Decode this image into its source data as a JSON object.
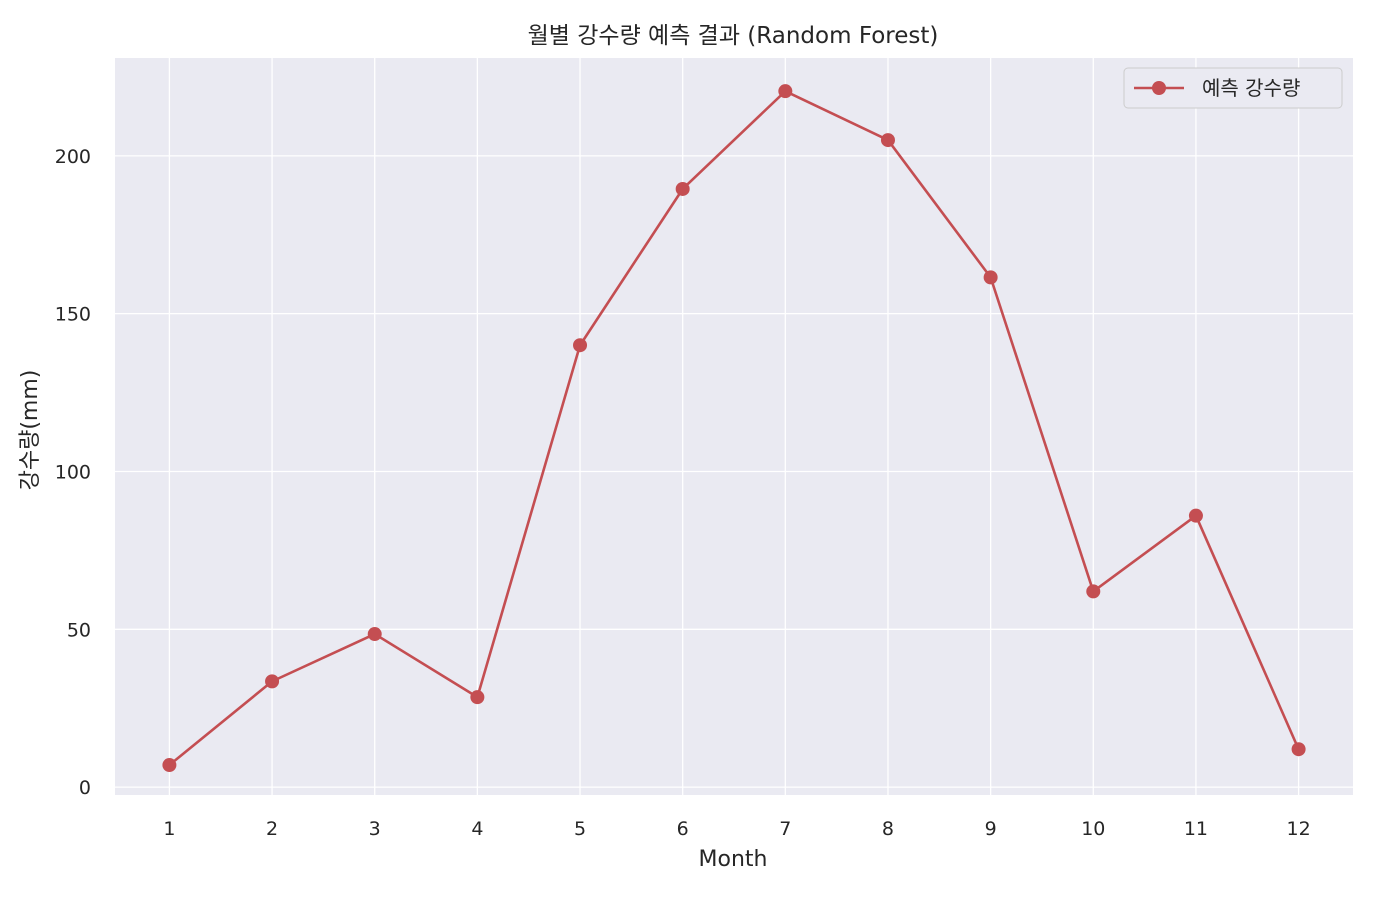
{
  "chart_data": {
    "type": "line",
    "title": "월별 강수량 예측 결과 (Random Forest)",
    "xlabel": "Month",
    "ylabel": "강수량(mm)",
    "x": [
      1,
      2,
      3,
      4,
      5,
      6,
      7,
      8,
      9,
      10,
      11,
      12
    ],
    "x_tick_labels": [
      "1",
      "2",
      "3",
      "4",
      "5",
      "6",
      "7",
      "8",
      "9",
      "10",
      "11",
      "12"
    ],
    "y_ticks": [
      0,
      50,
      100,
      150,
      200
    ],
    "y_tick_labels": [
      "0",
      "50",
      "100",
      "150",
      "200"
    ],
    "xlim": [
      0.47,
      12.53
    ],
    "ylim": [
      -2.5,
      231
    ],
    "series": [
      {
        "name": "예측 강수량",
        "values": [
          7,
          33.5,
          48.5,
          28.5,
          140,
          189.5,
          220.5,
          205,
          161.5,
          62,
          86,
          12
        ],
        "color": "#c44e52",
        "marker": "circle"
      }
    ],
    "legend_position": "top-right",
    "grid": true,
    "background": "#eaeaf2",
    "grid_color": "#ffffff"
  }
}
